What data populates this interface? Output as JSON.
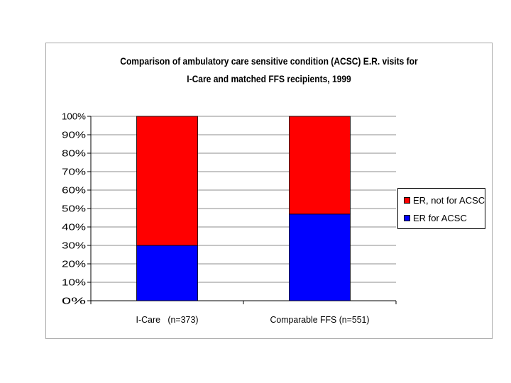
{
  "chart_data": {
    "type": "bar",
    "stacked": true,
    "percent": true,
    "title": "Comparison of ambulatory care sensitive condition (ACSC) E.R. visits for",
    "subtitle": "I-Care and matched FFS recipients, 1999",
    "categories": [
      "I-Care   (n=373)",
      "Comparable FFS (n=551)"
    ],
    "series": [
      {
        "name": "ER for ACSC",
        "color": "#0000ff",
        "values": [
          30,
          47
        ]
      },
      {
        "name": "ER, not for ACSC",
        "color": "#ff0000",
        "values": [
          70,
          53
        ]
      }
    ],
    "ylim": [
      0,
      100
    ],
    "yticks": [
      "0%",
      "10%",
      "20%",
      "30%",
      "40%",
      "50%",
      "60%",
      "70%",
      "80%",
      "90%",
      "100%"
    ],
    "grid": true,
    "legend_position": "right"
  }
}
